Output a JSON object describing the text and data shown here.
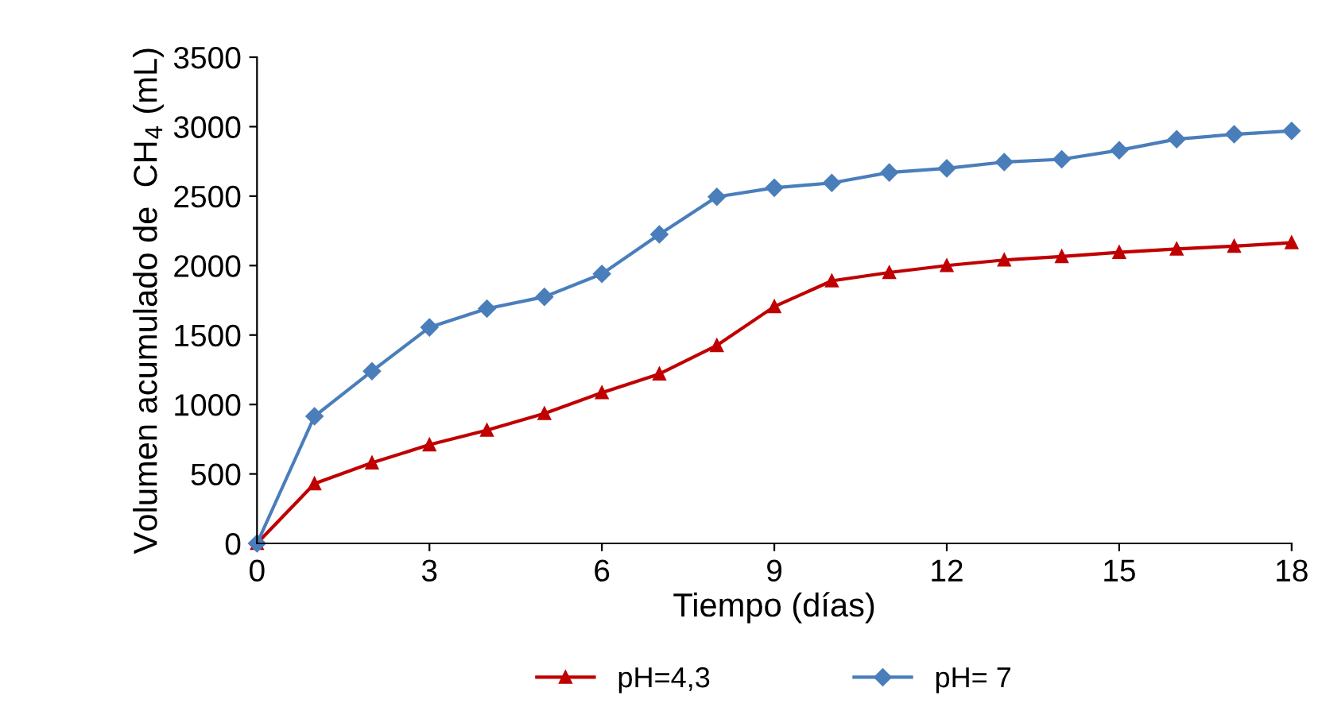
{
  "chart_data": {
    "type": "line",
    "xlabel": "Tiempo (días)",
    "ylabel": "Volumen acumulado de  CH$_{4}$ (mL)",
    "x": [
      0,
      1,
      2,
      3,
      4,
      5,
      6,
      7,
      8,
      9,
      10,
      11,
      12,
      13,
      14,
      15,
      16,
      17,
      18
    ],
    "series": [
      {
        "name": "pH=4,3",
        "color": "#c00000",
        "marker": "triangle",
        "values": [
          0,
          430,
          580,
          710,
          815,
          935,
          1085,
          1220,
          1425,
          1705,
          1890,
          1950,
          2000,
          2040,
          2065,
          2095,
          2120,
          2140,
          2165
        ]
      },
      {
        "name": "pH= 7",
        "color": "#4a7ebb",
        "marker": "diamond",
        "values": [
          0,
          915,
          1240,
          1555,
          1690,
          1775,
          1940,
          2225,
          2495,
          2560,
          2595,
          2670,
          2700,
          2745,
          2765,
          2830,
          2910,
          2945,
          2970
        ]
      }
    ],
    "xlim": [
      0,
      18
    ],
    "xticks": [
      0,
      3,
      6,
      9,
      12,
      15,
      18
    ],
    "ylim": [
      0,
      3500
    ],
    "yticks": [
      0,
      500,
      1000,
      1500,
      2000,
      2500,
      3000,
      3500
    ],
    "grid": false,
    "legend": "bottom",
    "line_style": "solid"
  }
}
